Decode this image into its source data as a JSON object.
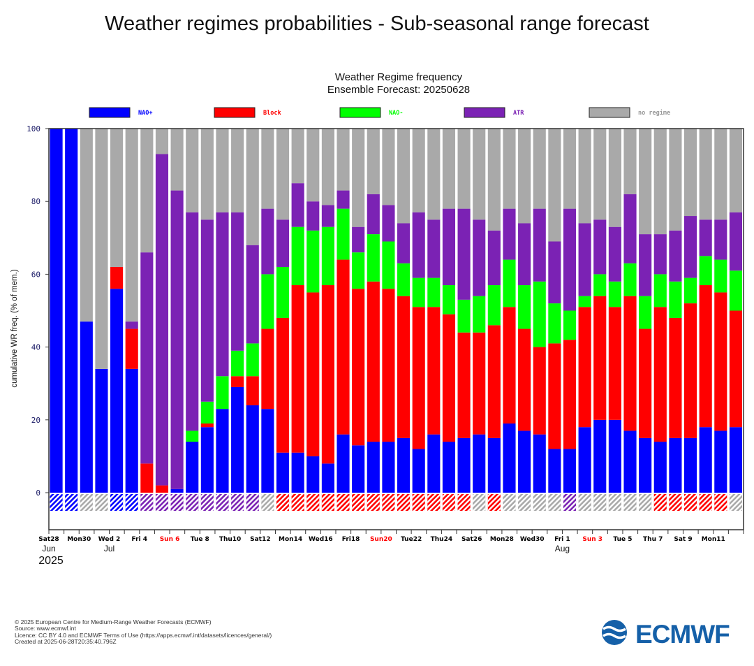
{
  "page_title": "Weather regimes probabilities - Sub-seasonal range forecast",
  "chart_data": {
    "type": "bar",
    "stacked": true,
    "title": "Weather Regime frequency",
    "subtitle": "Ensemble Forecast: 20250628",
    "ylabel": "cumulative WR freq. (% of mem.)",
    "ylim": [
      0,
      100
    ],
    "yticks": [
      "0",
      "20",
      "40",
      "60",
      "80",
      "100"
    ],
    "legend_position": "top",
    "series": [
      {
        "name": "NAO+",
        "color": "#0000ff",
        "values": [
          100,
          100,
          47,
          34,
          56,
          34,
          0,
          0,
          1,
          14,
          18,
          23,
          29,
          24,
          23,
          11,
          11,
          10,
          8,
          16,
          13,
          14,
          14,
          15,
          12,
          16,
          14,
          15,
          16,
          15,
          19,
          17,
          16,
          12,
          12,
          18,
          20,
          20,
          17,
          15,
          14,
          15,
          15,
          18,
          17,
          18
        ]
      },
      {
        "name": "Block",
        "color": "#ff0000",
        "values": [
          0,
          0,
          0,
          0,
          6,
          11,
          8,
          2,
          0,
          0,
          1,
          0,
          3,
          8,
          22,
          37,
          46,
          45,
          49,
          48,
          43,
          44,
          42,
          39,
          39,
          35,
          35,
          29,
          28,
          31,
          32,
          28,
          24,
          29,
          30,
          33,
          34,
          31,
          37,
          30,
          37,
          33,
          37,
          39,
          38,
          32
        ]
      },
      {
        "name": "NAO-",
        "color": "#00ff00",
        "values": [
          0,
          0,
          0,
          0,
          0,
          0,
          0,
          0,
          0,
          3,
          6,
          9,
          7,
          9,
          15,
          14,
          16,
          17,
          16,
          14,
          10,
          13,
          13,
          9,
          8,
          8,
          8,
          9,
          10,
          11,
          13,
          12,
          18,
          11,
          8,
          3,
          6,
          7,
          9,
          9,
          9,
          10,
          7,
          8,
          9,
          11
        ]
      },
      {
        "name": "ATR",
        "color": "#7b22b4",
        "values": [
          0,
          0,
          0,
          0,
          0,
          2,
          58,
          91,
          82,
          60,
          50,
          45,
          38,
          27,
          18,
          13,
          12,
          8,
          6,
          5,
          7,
          11,
          10,
          11,
          18,
          16,
          21,
          25,
          21,
          15,
          14,
          17,
          20,
          17,
          28,
          20,
          15,
          15,
          19,
          17,
          11,
          14,
          17,
          10,
          11,
          16
        ]
      },
      {
        "name": "no regime",
        "color": "#a9a9a9",
        "values": [
          0,
          0,
          53,
          66,
          38,
          53,
          34,
          7,
          17,
          23,
          25,
          23,
          23,
          32,
          22,
          25,
          15,
          20,
          21,
          17,
          27,
          18,
          21,
          26,
          23,
          25,
          22,
          22,
          25,
          28,
          22,
          26,
          22,
          31,
          22,
          26,
          25,
          27,
          18,
          29,
          29,
          28,
          24,
          25,
          25,
          23
        ]
      }
    ],
    "dominant": [
      "NAO+",
      "NAO+",
      "no regime",
      "no regime",
      "NAO+",
      "NAO+",
      "ATR",
      "ATR",
      "ATR",
      "ATR",
      "ATR",
      "ATR",
      "ATR",
      "ATR",
      "no regime",
      "Block",
      "Block",
      "Block",
      "Block",
      "Block",
      "Block",
      "Block",
      "Block",
      "Block",
      "Block",
      "Block",
      "Block",
      "Block",
      "no regime",
      "Block",
      "no regime",
      "no regime",
      "no regime",
      "no regime",
      "ATR",
      "no regime",
      "no regime",
      "no regime",
      "no regime",
      "no regime",
      "Block",
      "Block",
      "Block",
      "Block",
      "Block",
      "no regime"
    ],
    "xtick_labels": [
      {
        "day": 0,
        "text": "Sat28",
        "color": "#000000"
      },
      {
        "day": 2,
        "text": "Mon30",
        "color": "#000000"
      },
      {
        "day": 4,
        "text": "Wed 2",
        "color": "#000000"
      },
      {
        "day": 6,
        "text": "Fri 4",
        "color": "#000000"
      },
      {
        "day": 8,
        "text": "Sun 6",
        "color": "#ff0000"
      },
      {
        "day": 10,
        "text": "Tue 8",
        "color": "#000000"
      },
      {
        "day": 12,
        "text": "Thu10",
        "color": "#000000"
      },
      {
        "day": 14,
        "text": "Sat12",
        "color": "#000000"
      },
      {
        "day": 16,
        "text": "Mon14",
        "color": "#000000"
      },
      {
        "day": 18,
        "text": "Wed16",
        "color": "#000000"
      },
      {
        "day": 20,
        "text": "Fri18",
        "color": "#000000"
      },
      {
        "day": 22,
        "text": "Sun20",
        "color": "#ff0000"
      },
      {
        "day": 24,
        "text": "Tue22",
        "color": "#000000"
      },
      {
        "day": 26,
        "text": "Thu24",
        "color": "#000000"
      },
      {
        "day": 28,
        "text": "Sat26",
        "color": "#000000"
      },
      {
        "day": 30,
        "text": "Mon28",
        "color": "#000000"
      },
      {
        "day": 32,
        "text": "Wed30",
        "color": "#000000"
      },
      {
        "day": 34,
        "text": "Fri 1",
        "color": "#000000"
      },
      {
        "day": 36,
        "text": "Sun 3",
        "color": "#ff0000"
      },
      {
        "day": 38,
        "text": "Tue 5",
        "color": "#000000"
      },
      {
        "day": 40,
        "text": "Thu 7",
        "color": "#000000"
      },
      {
        "day": 42,
        "text": "Sat 9",
        "color": "#000000"
      },
      {
        "day": 44,
        "text": "Mon11",
        "color": "#000000"
      }
    ],
    "month_labels": [
      {
        "day": 0,
        "text": "Jun"
      },
      {
        "day": 4,
        "text": "Jul"
      },
      {
        "day": 34,
        "text": "Aug"
      }
    ],
    "year_label": "2025"
  },
  "footer": {
    "copyright": "© 2025 European Centre for Medium-Range Weather Forecasts (ECMWF)",
    "source": "Source: www.ecmwf.int",
    "licence": "Licence: CC BY 4.0 and ECMWF Terms of Use (https://apps.ecmwf.int/datasets/licences/general/)",
    "created": "Created at 2025-06-28T20:35:40.796Z"
  },
  "logo": {
    "text": "ECMWF",
    "color": "#1560a8"
  }
}
